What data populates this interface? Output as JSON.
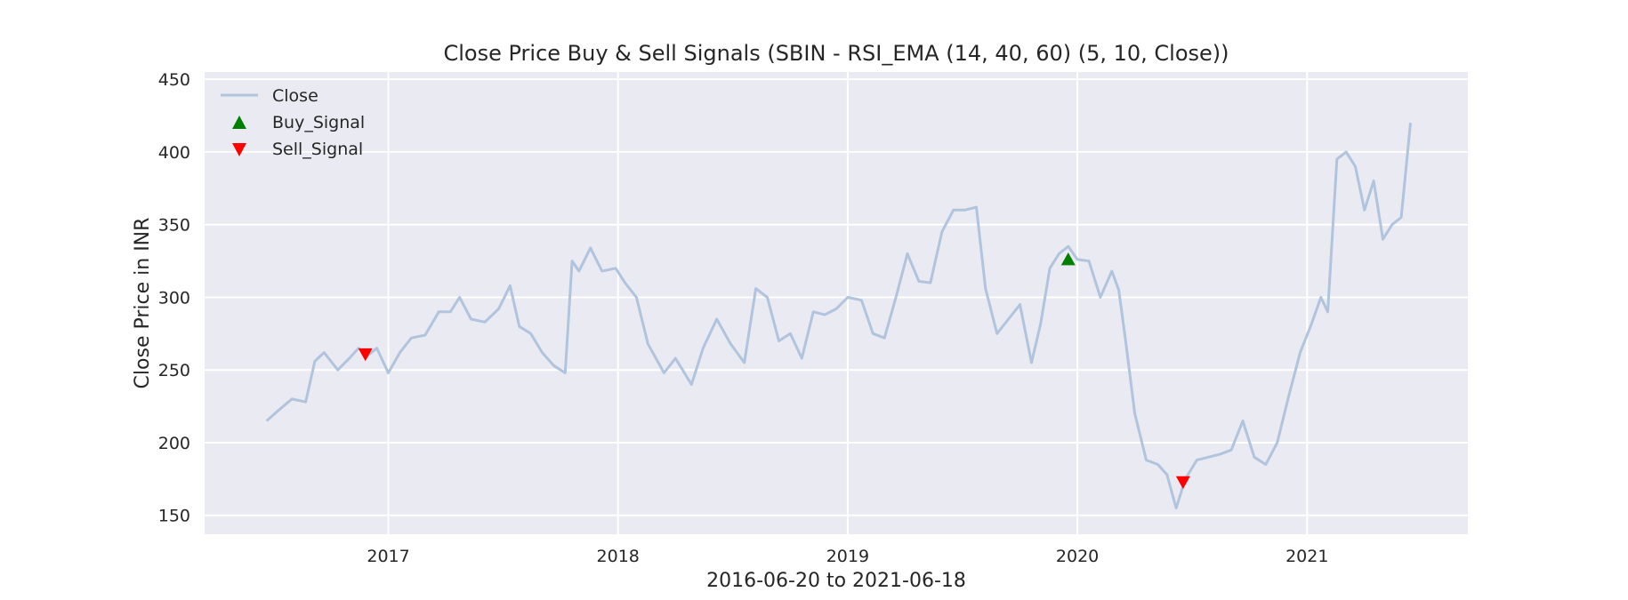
{
  "chart_data": {
    "type": "line",
    "title": "Close Price Buy & Sell Signals (SBIN - RSI_EMA (14, 40, 60) (5, 10, Close))",
    "xlabel": "2016-06-20 to 2021-06-18",
    "ylabel": "Close Price in INR",
    "xlim": [
      2016.2,
      2021.7
    ],
    "ylim": [
      137,
      455
    ],
    "xticks": [
      2017,
      2018,
      2019,
      2020,
      2021
    ],
    "xtick_labels": [
      "2017",
      "2018",
      "2019",
      "2020",
      "2021"
    ],
    "yticks": [
      150,
      200,
      250,
      300,
      350,
      400,
      450
    ],
    "ytick_labels": [
      "150",
      "200",
      "250",
      "300",
      "350",
      "400",
      "450"
    ],
    "grid": true,
    "legend_position": "top-left",
    "legend": [
      "Close",
      "Buy_Signal",
      "Sell_Signal"
    ],
    "colors": {
      "background": "#eaeaf2",
      "grid": "#ffffff",
      "close_line": "#b0c4de",
      "buy": "#008000",
      "sell": "#ff0000"
    },
    "series": [
      {
        "name": "Close",
        "x": [
          2016.47,
          2016.52,
          2016.58,
          2016.64,
          2016.68,
          2016.72,
          2016.78,
          2016.83,
          2016.87,
          2016.91,
          2016.95,
          2017.0,
          2017.05,
          2017.1,
          2017.16,
          2017.22,
          2017.27,
          2017.31,
          2017.36,
          2017.42,
          2017.48,
          2017.53,
          2017.57,
          2017.62,
          2017.67,
          2017.72,
          2017.77,
          2017.8,
          2017.83,
          2017.88,
          2017.93,
          2017.99,
          2018.03,
          2018.08,
          2018.13,
          2018.2,
          2018.25,
          2018.32,
          2018.37,
          2018.43,
          2018.49,
          2018.55,
          2018.6,
          2018.65,
          2018.7,
          2018.75,
          2018.8,
          2018.85,
          2018.9,
          2018.95,
          2019.0,
          2019.06,
          2019.11,
          2019.16,
          2019.21,
          2019.26,
          2019.31,
          2019.36,
          2019.41,
          2019.46,
          2019.51,
          2019.56,
          2019.6,
          2019.65,
          2019.7,
          2019.75,
          2019.8,
          2019.84,
          2019.88,
          2019.92,
          2019.96,
          2020.0,
          2020.05,
          2020.1,
          2020.15,
          2020.18,
          2020.21,
          2020.25,
          2020.3,
          2020.35,
          2020.39,
          2020.43,
          2020.47,
          2020.52,
          2020.57,
          2020.62,
          2020.67,
          2020.72,
          2020.77,
          2020.82,
          2020.87,
          2020.92,
          2020.97,
          2021.02,
          2021.06,
          2021.09,
          2021.13,
          2021.17,
          2021.21,
          2021.25,
          2021.29,
          2021.33,
          2021.37,
          2021.41,
          2021.45
        ],
        "y": [
          215,
          222,
          230,
          228,
          256,
          262,
          250,
          258,
          265,
          260,
          265,
          248,
          262,
          272,
          274,
          290,
          290,
          300,
          285,
          283,
          292,
          308,
          280,
          275,
          262,
          253,
          248,
          325,
          318,
          334,
          318,
          320,
          310,
          300,
          268,
          248,
          258,
          240,
          265,
          285,
          268,
          255,
          306,
          300,
          270,
          275,
          258,
          290,
          288,
          292,
          300,
          298,
          275,
          272,
          300,
          330,
          311,
          310,
          345,
          360,
          360,
          362,
          306,
          275,
          285,
          295,
          255,
          282,
          320,
          330,
          335,
          326,
          325,
          300,
          318,
          305,
          270,
          220,
          188,
          185,
          178,
          155,
          175,
          188,
          190,
          192,
          195,
          215,
          190,
          185,
          200,
          232,
          262,
          282,
          300,
          290,
          395,
          400,
          390,
          360,
          380,
          340,
          350,
          355,
          420
        ]
      }
    ],
    "signals": {
      "buy": [
        {
          "x": 2019.96,
          "y": 326
        }
      ],
      "sell": [
        {
          "x": 2016.9,
          "y": 261
        },
        {
          "x": 2020.46,
          "y": 173
        }
      ]
    }
  }
}
